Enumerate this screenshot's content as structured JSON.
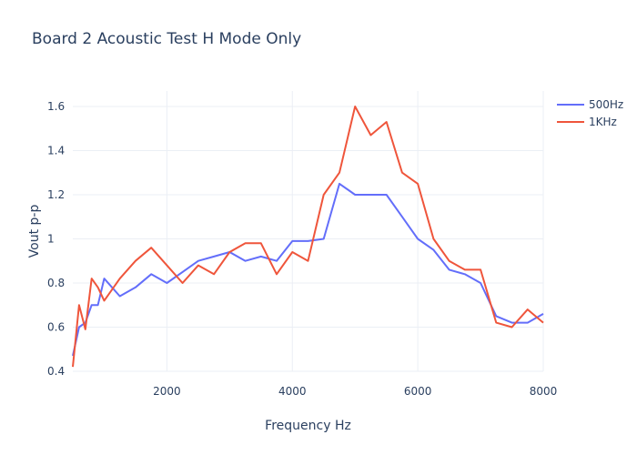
{
  "chart_data": {
    "type": "line",
    "title": "Board 2 Acoustic Test H Mode Only",
    "xlabel": "Frequency Hz",
    "ylabel": "Vout p-p",
    "xlim": [
      500,
      8000
    ],
    "ylim": [
      0.4,
      1.67
    ],
    "x_ticks": [
      2000,
      4000,
      6000,
      8000
    ],
    "y_ticks": [
      0.4,
      0.6,
      0.8,
      1,
      1.2,
      1.4,
      1.6
    ],
    "x_tick_labels": [
      "2000",
      "4000",
      "6000",
      "8000"
    ],
    "y_tick_labels": [
      "0.4",
      "0.6",
      "0.8",
      "1",
      "1.2",
      "1.4",
      "1.6"
    ],
    "grid": true,
    "legend_position": "top-right",
    "series": [
      {
        "name": "500Hz",
        "color": "#636efa",
        "x": [
          500,
          600,
          700,
          800,
          900,
          1000,
          1250,
          1500,
          1750,
          2000,
          2250,
          2500,
          2750,
          3000,
          3250,
          3500,
          3750,
          4000,
          4250,
          4500,
          4750,
          5000,
          5250,
          5500,
          5750,
          6000,
          6250,
          6500,
          6750,
          7000,
          7250,
          7500,
          7750,
          8000
        ],
        "y": [
          0.47,
          0.6,
          0.62,
          0.7,
          0.7,
          0.82,
          0.74,
          0.78,
          0.84,
          0.8,
          0.85,
          0.9,
          0.92,
          0.94,
          0.9,
          0.92,
          0.9,
          0.99,
          0.99,
          1.0,
          1.25,
          1.2,
          1.2,
          1.2,
          1.1,
          1.0,
          0.95,
          0.86,
          0.84,
          0.8,
          0.65,
          0.62,
          0.62,
          0.66
        ]
      },
      {
        "name": "1KHz",
        "color": "#ef553b",
        "x": [
          500,
          600,
          700,
          800,
          900,
          1000,
          1250,
          1500,
          1750,
          2000,
          2250,
          2500,
          2750,
          3000,
          3250,
          3500,
          3750,
          4000,
          4250,
          4500,
          4750,
          5000,
          5250,
          5500,
          5750,
          6000,
          6250,
          6500,
          6750,
          7000,
          7250,
          7500,
          7750,
          8000
        ],
        "y": [
          0.42,
          0.7,
          0.59,
          0.82,
          0.78,
          0.72,
          0.82,
          0.9,
          0.96,
          0.88,
          0.8,
          0.88,
          0.84,
          0.94,
          0.98,
          0.98,
          0.84,
          0.94,
          0.9,
          1.2,
          1.3,
          1.6,
          1.47,
          1.53,
          1.3,
          1.25,
          1.0,
          0.9,
          0.86,
          0.86,
          0.62,
          0.6,
          0.68,
          0.62
        ]
      }
    ]
  }
}
